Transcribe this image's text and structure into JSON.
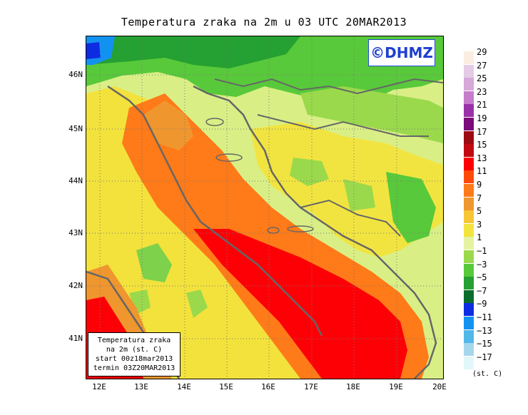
{
  "title": "Temperatura zraka na 2m u 03 UTC 20MAR2013",
  "credit": "©DHMZ",
  "info_box": {
    "line1": "Temperatura zraka",
    "line2": "na 2m (st. C)",
    "line3": "start 00z18mar2013",
    "line4": "termin 03Z20MAR2013"
  },
  "map": {
    "lat_labels": [
      "46N",
      "45N",
      "44N",
      "43N",
      "42N",
      "41N"
    ],
    "lon_labels": [
      "12E",
      "13E",
      "14E",
      "15E",
      "16E",
      "17E",
      "18E",
      "19E",
      "20E"
    ]
  },
  "legend": {
    "unit": "(st. C)",
    "labels": [
      "29",
      "27",
      "25",
      "23",
      "21",
      "19",
      "17",
      "15",
      "13",
      "11",
      "9",
      "7",
      "5",
      "3",
      "1",
      "−1",
      "−3",
      "−5",
      "−7",
      "−9",
      "−11",
      "−13",
      "−15",
      "−17"
    ],
    "colors": [
      "#fbeee0",
      "#e4cbe6",
      "#d7a8d9",
      "#c57dcc",
      "#9932a8",
      "#7b0a7b",
      "#9c0a12",
      "#c20810",
      "#fd0006",
      "#ff4a0a",
      "#ff7a18",
      "#f0962e",
      "#f6c637",
      "#f3e33e",
      "#e5f3a0",
      "#9ad94c",
      "#58c93a",
      "#25a032",
      "#0b6d2c",
      "#0d2ce2",
      "#1292f0",
      "#52b8e9",
      "#a6d6ee",
      "#e2f7fa"
    ]
  }
}
